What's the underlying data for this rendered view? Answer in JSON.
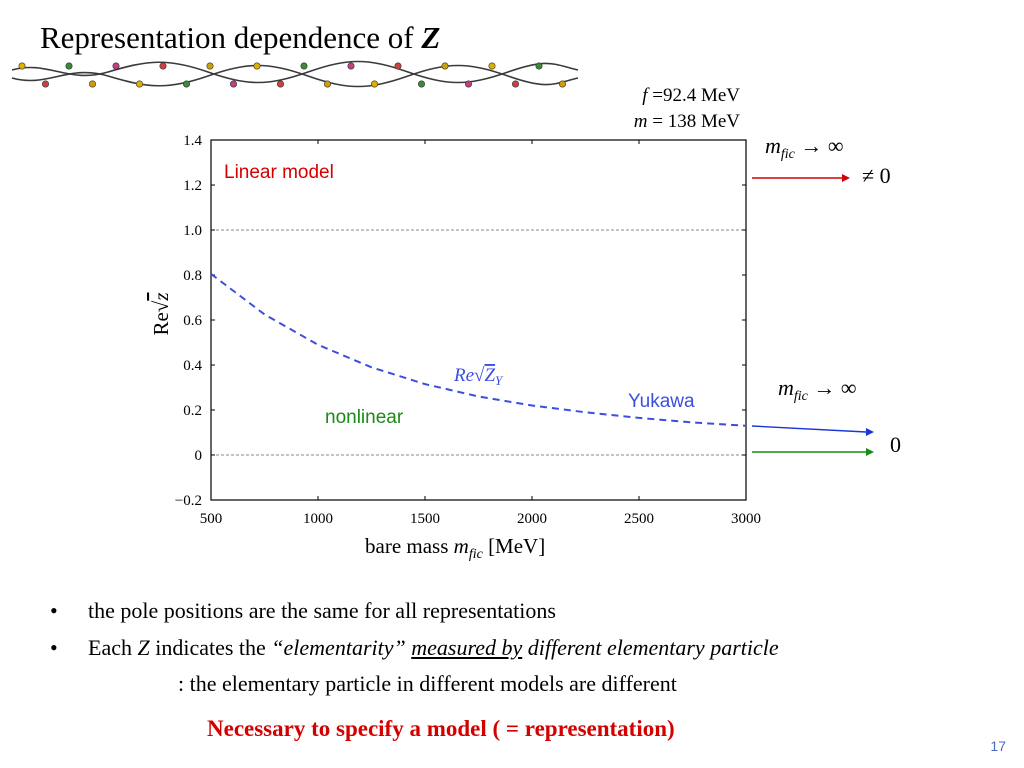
{
  "slide": {
    "title_prefix": "Representation dependence of ",
    "title_var": "Z",
    "page_number": "17"
  },
  "params": {
    "f_symbol": "f",
    "f_value": "=92.4 MeV",
    "m_symbol": "m",
    "m_value": "= 138 MeV"
  },
  "annotations": {
    "upper_limit": "m",
    "upper_sub": "fic",
    "upper_arrow": "→ ∞",
    "upper_value": "≠ 0",
    "lower_limit": "m",
    "lower_sub": "fic",
    "lower_arrow": "→ ∞",
    "lower_value": "0"
  },
  "chart_data": {
    "type": "line",
    "xlabel_text": "bare mass ",
    "xlabel_var": "m",
    "xlabel_sub": "fic",
    "xlabel_unit": " [MeV]",
    "ylabel_prefix": "Re",
    "ylabel_var": "z",
    "x_ticks": [
      "500",
      "1000",
      "1500",
      "2000",
      "2500",
      "3000"
    ],
    "y_ticks": [
      "1.4",
      "1.2",
      "1.0",
      "0.8",
      "0.6",
      "0.4",
      "0.2",
      "0",
      "−0.2"
    ],
    "xlim": [
      500,
      3000
    ],
    "ylim": [
      -0.2,
      1.4
    ],
    "dashed_gridlines": [
      1.0,
      0.0
    ],
    "series": [
      {
        "name": "Yukawa",
        "curve_label": "Re",
        "curve_label_var": "Z",
        "curve_label_sub": "Y",
        "color": "#3a4ee0",
        "x": [
          500,
          750,
          1000,
          1250,
          1500,
          1750,
          2000,
          2250,
          2500,
          2750,
          3000
        ],
        "y": [
          0.805,
          0.625,
          0.49,
          0.39,
          0.315,
          0.26,
          0.22,
          0.19,
          0.165,
          0.145,
          0.13
        ]
      }
    ],
    "text_labels": [
      {
        "name": "linear-model-label",
        "text": "Linear model",
        "color": "#d40000"
      },
      {
        "name": "nonlinear-label",
        "text": "nonlinear",
        "color": "#1a8a1a"
      },
      {
        "name": "yukawa-label",
        "text": "Yukawa",
        "color": "#3a4ee0"
      }
    ]
  },
  "bullets": [
    {
      "text": "the pole positions are the same for all representations"
    },
    {
      "pre": "Each ",
      "var": "Z",
      "mid": " indicates the ",
      "quote": "“elementarity”",
      "space": " ",
      "underlined": "measured by",
      "post": " different elementary particle"
    }
  ],
  "subline": ": the elementary particle in different models are different",
  "conclusion": "Necessary to specify a model  ( = representation)",
  "colors": {
    "accent_red": "#d40000",
    "accent_green": "#1a8a1a",
    "accent_blue": "#3a4ee0"
  }
}
